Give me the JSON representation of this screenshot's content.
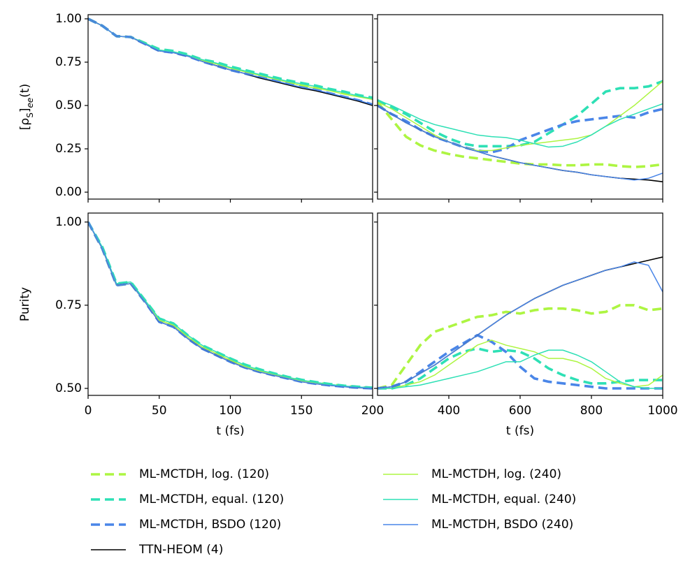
{
  "chart_data": {
    "type": "line",
    "series": [
      {
        "name": "ML-MCTDH, log. (120)",
        "color": "#adf542",
        "linestyle": "dashed"
      },
      {
        "name": "ML-MCTDH, equal. (120)",
        "color": "#2ee0b5",
        "linestyle": "dashed"
      },
      {
        "name": "ML-MCTDH, BSDO (120)",
        "color": "#4a86e8",
        "linestyle": "dashed"
      },
      {
        "name": "TTN-HEOM (4)",
        "color": "#000000",
        "linestyle": "solid"
      },
      {
        "name": "ML-MCTDH, log. (240)",
        "color": "#adf542",
        "linestyle": "solid"
      },
      {
        "name": "ML-MCTDH, equal. (240)",
        "color": "#2ee0b5",
        "linestyle": "solid"
      },
      {
        "name": "ML-MCTDH, BSDO (240)",
        "color": "#4a86e8",
        "linestyle": "solid"
      }
    ],
    "panels": [
      {
        "ylabel": [
          "[ρ",
          "S",
          "]",
          "ee",
          "(t)"
        ],
        "xlim": [
          0,
          200
        ],
        "xticks": [
          0,
          50,
          100,
          150,
          200
        ],
        "ylim": [
          -0.04,
          1.024
        ],
        "yticks": [
          {
            "value": 0,
            "label": "0.00"
          },
          0.25,
          {
            "value": 0.5,
            "label": "0.50"
          },
          0.75,
          {
            "value": 1,
            "label": "1.00"
          }
        ],
        "x": [
          0,
          10,
          20,
          30,
          40,
          50,
          60,
          70,
          80,
          90,
          100,
          110,
          120,
          130,
          140,
          150,
          160,
          170,
          180,
          190,
          200
        ],
        "values": [
          [
            1.0,
            0.96,
            0.9,
            0.895,
            0.86,
            0.82,
            0.81,
            0.79,
            0.765,
            0.745,
            0.72,
            0.7,
            0.68,
            0.66,
            0.64,
            0.62,
            0.605,
            0.59,
            0.57,
            0.555,
            0.54
          ],
          [
            1.0,
            0.96,
            0.9,
            0.895,
            0.86,
            0.825,
            0.815,
            0.795,
            0.765,
            0.75,
            0.725,
            0.705,
            0.685,
            0.665,
            0.645,
            0.63,
            0.615,
            0.595,
            0.58,
            0.56,
            0.545
          ],
          [
            1.0,
            0.96,
            0.9,
            0.895,
            0.855,
            0.815,
            0.805,
            0.785,
            0.755,
            0.73,
            0.705,
            0.685,
            0.665,
            0.645,
            0.625,
            0.605,
            0.59,
            0.57,
            0.55,
            0.53,
            0.505
          ],
          [
            1.0,
            0.96,
            0.9,
            0.895,
            0.855,
            0.815,
            0.805,
            0.785,
            0.755,
            0.73,
            0.705,
            0.685,
            0.66,
            0.64,
            0.62,
            0.6,
            0.585,
            0.565,
            0.545,
            0.525,
            0.5
          ],
          [
            1.0,
            0.96,
            0.9,
            0.895,
            0.86,
            0.82,
            0.81,
            0.79,
            0.76,
            0.74,
            0.715,
            0.695,
            0.675,
            0.655,
            0.635,
            0.615,
            0.6,
            0.585,
            0.565,
            0.55,
            0.535
          ],
          [
            1.0,
            0.96,
            0.9,
            0.895,
            0.86,
            0.82,
            0.81,
            0.79,
            0.765,
            0.745,
            0.72,
            0.7,
            0.68,
            0.66,
            0.64,
            0.625,
            0.61,
            0.59,
            0.575,
            0.555,
            0.54
          ],
          [
            1.0,
            0.96,
            0.9,
            0.895,
            0.855,
            0.815,
            0.805,
            0.785,
            0.755,
            0.73,
            0.705,
            0.685,
            0.665,
            0.645,
            0.625,
            0.605,
            0.59,
            0.57,
            0.55,
            0.53,
            0.505
          ]
        ]
      },
      {
        "xlim": [
          200,
          1000
        ],
        "xticks": [
          400,
          600,
          800,
          1000
        ],
        "ylim": [
          -0.04,
          1.024
        ],
        "yticks": [
          {
            "value": 0,
            "label": "0.00"
          },
          0.25,
          {
            "value": 0.5,
            "label": "0.50"
          },
          0.75,
          {
            "value": 1,
            "label": "1.00"
          }
        ],
        "x": [
          200,
          240,
          280,
          320,
          360,
          400,
          440,
          480,
          520,
          560,
          600,
          640,
          680,
          720,
          760,
          800,
          840,
          880,
          920,
          960,
          1000
        ],
        "values": [
          [
            0.52,
            0.42,
            0.32,
            0.27,
            0.24,
            0.22,
            0.205,
            0.195,
            0.185,
            0.175,
            0.165,
            0.16,
            0.16,
            0.155,
            0.155,
            0.16,
            0.16,
            0.15,
            0.145,
            0.15,
            0.16
          ],
          [
            0.53,
            0.49,
            0.45,
            0.4,
            0.35,
            0.31,
            0.28,
            0.265,
            0.265,
            0.265,
            0.27,
            0.29,
            0.34,
            0.39,
            0.44,
            0.51,
            0.58,
            0.6,
            0.6,
            0.61,
            0.64
          ],
          [
            0.5,
            0.45,
            0.41,
            0.36,
            0.32,
            0.29,
            0.26,
            0.24,
            0.23,
            0.25,
            0.3,
            0.33,
            0.36,
            0.39,
            0.41,
            0.42,
            0.43,
            0.44,
            0.43,
            0.46,
            0.48
          ],
          [
            0.5,
            0.45,
            0.4,
            0.36,
            0.32,
            0.29,
            0.26,
            0.235,
            0.21,
            0.19,
            0.17,
            0.155,
            0.14,
            0.125,
            0.115,
            0.1,
            0.09,
            0.08,
            0.075,
            0.07,
            0.06
          ],
          [
            0.52,
            0.48,
            0.43,
            0.38,
            0.33,
            0.29,
            0.26,
            0.24,
            0.24,
            0.255,
            0.27,
            0.28,
            0.29,
            0.3,
            0.31,
            0.33,
            0.38,
            0.44,
            0.5,
            0.57,
            0.64
          ],
          [
            0.53,
            0.5,
            0.46,
            0.42,
            0.39,
            0.37,
            0.35,
            0.33,
            0.32,
            0.315,
            0.3,
            0.28,
            0.26,
            0.265,
            0.29,
            0.33,
            0.38,
            0.42,
            0.45,
            0.48,
            0.51
          ],
          [
            0.5,
            0.45,
            0.4,
            0.36,
            0.32,
            0.29,
            0.26,
            0.235,
            0.21,
            0.19,
            0.17,
            0.155,
            0.14,
            0.125,
            0.115,
            0.1,
            0.09,
            0.08,
            0.07,
            0.08,
            0.11
          ]
        ]
      },
      {
        "ylabel": [
          "Purity"
        ],
        "xlabel": "t (fs)",
        "xlim": [
          0,
          200
        ],
        "xticks": [
          0,
          50,
          100,
          150,
          200
        ],
        "ylim": [
          0.479,
          1.027
        ],
        "yticks": [
          {
            "value": 0.5,
            "label": "0.50"
          },
          0.75,
          {
            "value": 1,
            "label": "1.00"
          }
        ],
        "x": [
          0,
          10,
          20,
          30,
          40,
          50,
          60,
          70,
          80,
          90,
          100,
          110,
          120,
          130,
          140,
          150,
          160,
          170,
          180,
          190,
          200
        ],
        "values": [
          [
            1.0,
            0.92,
            0.81,
            0.815,
            0.76,
            0.705,
            0.69,
            0.655,
            0.625,
            0.605,
            0.585,
            0.568,
            0.555,
            0.543,
            0.533,
            0.523,
            0.517,
            0.512,
            0.507,
            0.504,
            0.501
          ],
          [
            1.0,
            0.925,
            0.815,
            0.82,
            0.765,
            0.71,
            0.695,
            0.66,
            0.63,
            0.61,
            0.59,
            0.572,
            0.558,
            0.546,
            0.535,
            0.526,
            0.519,
            0.513,
            0.508,
            0.505,
            0.502
          ],
          [
            1.0,
            0.92,
            0.81,
            0.815,
            0.76,
            0.7,
            0.685,
            0.65,
            0.62,
            0.6,
            0.58,
            0.563,
            0.55,
            0.54,
            0.53,
            0.52,
            0.514,
            0.509,
            0.505,
            0.502,
            0.5
          ],
          [
            1.0,
            0.92,
            0.81,
            0.815,
            0.76,
            0.7,
            0.685,
            0.65,
            0.62,
            0.6,
            0.58,
            0.563,
            0.55,
            0.54,
            0.53,
            0.52,
            0.514,
            0.509,
            0.505,
            0.502,
            0.5
          ],
          [
            1.0,
            0.92,
            0.81,
            0.815,
            0.76,
            0.705,
            0.69,
            0.655,
            0.625,
            0.605,
            0.585,
            0.566,
            0.553,
            0.542,
            0.532,
            0.522,
            0.516,
            0.511,
            0.506,
            0.503,
            0.501
          ],
          [
            1.0,
            0.925,
            0.815,
            0.82,
            0.765,
            0.71,
            0.695,
            0.66,
            0.63,
            0.61,
            0.59,
            0.57,
            0.556,
            0.545,
            0.534,
            0.525,
            0.518,
            0.512,
            0.507,
            0.504,
            0.502
          ],
          [
            1.0,
            0.92,
            0.81,
            0.815,
            0.76,
            0.7,
            0.685,
            0.65,
            0.62,
            0.6,
            0.58,
            0.563,
            0.55,
            0.54,
            0.53,
            0.52,
            0.514,
            0.509,
            0.505,
            0.502,
            0.5
          ]
        ]
      },
      {
        "xlabel": "t (fs)",
        "xlim": [
          200,
          1000
        ],
        "xticks": [
          400,
          600,
          800,
          1000
        ],
        "ylim": [
          0.479,
          1.027
        ],
        "yticks": [
          {
            "value": 0.5,
            "label": "0.50"
          },
          0.75,
          {
            "value": 1,
            "label": "1.00"
          }
        ],
        "x": [
          200,
          240,
          280,
          320,
          360,
          400,
          440,
          480,
          520,
          560,
          600,
          640,
          680,
          720,
          760,
          800,
          840,
          880,
          920,
          960,
          1000
        ],
        "values": [
          [
            0.5,
            0.51,
            0.57,
            0.63,
            0.67,
            0.685,
            0.7,
            0.715,
            0.72,
            0.73,
            0.725,
            0.735,
            0.74,
            0.74,
            0.735,
            0.725,
            0.73,
            0.75,
            0.75,
            0.735,
            0.74
          ],
          [
            0.5,
            0.5,
            0.51,
            0.53,
            0.56,
            0.59,
            0.61,
            0.62,
            0.61,
            0.615,
            0.61,
            0.59,
            0.56,
            0.54,
            0.525,
            0.515,
            0.515,
            0.52,
            0.525,
            0.525,
            0.525
          ],
          [
            0.5,
            0.505,
            0.52,
            0.55,
            0.58,
            0.61,
            0.635,
            0.66,
            0.64,
            0.61,
            0.565,
            0.53,
            0.52,
            0.515,
            0.51,
            0.505,
            0.5,
            0.5,
            0.5,
            0.5,
            0.5
          ],
          [
            0.5,
            0.505,
            0.52,
            0.545,
            0.57,
            0.6,
            0.63,
            0.66,
            0.69,
            0.72,
            0.745,
            0.77,
            0.79,
            0.81,
            0.825,
            0.84,
            0.855,
            0.865,
            0.875,
            0.885,
            0.895
          ],
          [
            0.5,
            0.5,
            0.51,
            0.52,
            0.54,
            0.57,
            0.6,
            0.63,
            0.645,
            0.63,
            0.62,
            0.61,
            0.59,
            0.59,
            0.58,
            0.56,
            0.53,
            0.515,
            0.505,
            0.51,
            0.54
          ],
          [
            0.5,
            0.5,
            0.505,
            0.51,
            0.52,
            0.53,
            0.54,
            0.55,
            0.565,
            0.58,
            0.58,
            0.6,
            0.615,
            0.615,
            0.6,
            0.58,
            0.55,
            0.52,
            0.505,
            0.5,
            0.5
          ],
          [
            0.5,
            0.505,
            0.52,
            0.545,
            0.57,
            0.6,
            0.63,
            0.66,
            0.69,
            0.72,
            0.745,
            0.77,
            0.79,
            0.81,
            0.825,
            0.84,
            0.855,
            0.865,
            0.88,
            0.87,
            0.79
          ]
        ]
      }
    ]
  }
}
